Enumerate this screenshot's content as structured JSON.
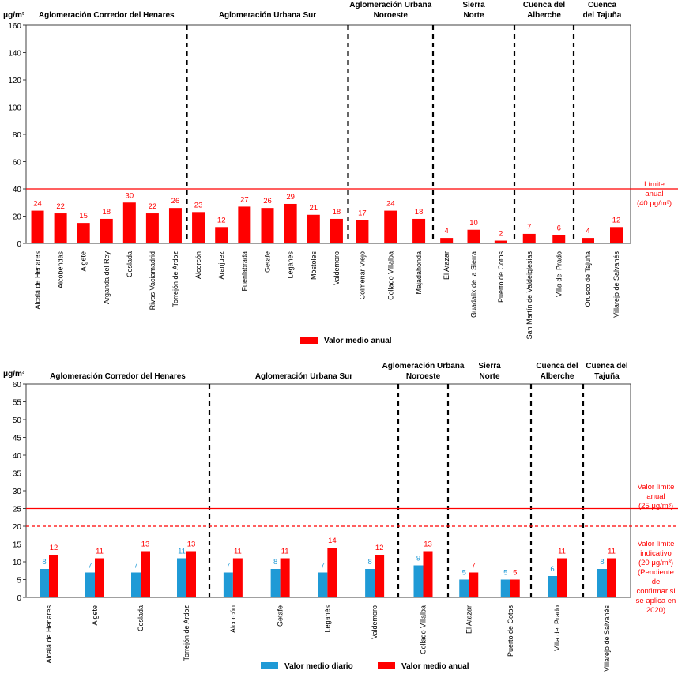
{
  "colors": {
    "red": "#ff0000",
    "blue": "#1f9ad6",
    "axis": "#404040",
    "grid": "#d9d9d9",
    "text": "#000000"
  },
  "chart_data": [
    {
      "type": "bar",
      "unit_label": "μg/m³",
      "ylim": [
        0,
        160
      ],
      "yticks": [
        0,
        20,
        40,
        60,
        80,
        100,
        120,
        140,
        160
      ],
      "groups": [
        {
          "label": [
            "Aglomeración Corredor del Henares"
          ],
          "stations": [
            "Alcalá de Henares",
            "Alcobendas",
            "Algete",
            "Arganda del Rey",
            "Coslada",
            "Rivas Vaciamadrid",
            "Torrejón de Ardoz"
          ]
        },
        {
          "label": [
            "Aglomeración Urbana Sur"
          ],
          "stations": [
            "Alcorcón",
            "Aranjuez",
            "Fuenlabrada",
            "Getafe",
            "Leganés",
            "Móstoles",
            "Valdemoro"
          ]
        },
        {
          "label": [
            "Aglomeración Urbana",
            "Noroeste"
          ],
          "stations": [
            "Colmenar Viejo",
            "Collado Villalba",
            "Majadahonda"
          ]
        },
        {
          "label": [
            "Sierra",
            "Norte"
          ],
          "stations": [
            "El Atazar",
            "Guadalix de la Sierra",
            "Puerto de Cotos"
          ]
        },
        {
          "label": [
            "Cuenca del",
            "Alberche"
          ],
          "stations": [
            "San Martín de Valdeiglesias",
            "Villa del Prado"
          ]
        },
        {
          "label": [
            "Cuenca",
            "del Tajuña"
          ],
          "stations": [
            "Orusco de Tajuña",
            "Villarejo de Salvanés"
          ]
        }
      ],
      "series": [
        {
          "name": "Valor medio anual",
          "color": "#ff0000",
          "values": [
            24,
            22,
            15,
            18,
            30,
            22,
            26,
            23,
            12,
            27,
            26,
            29,
            21,
            18,
            17,
            24,
            18,
            4,
            10,
            2,
            7,
            6,
            4,
            12
          ]
        }
      ],
      "limits": [
        {
          "value": 40,
          "style": "solid",
          "label": [
            "Límite",
            "anual",
            "(40 μg/m³)"
          ]
        }
      ]
    },
    {
      "type": "bar",
      "unit_label": "μg/m³",
      "ylim": [
        0,
        60
      ],
      "yticks": [
        0,
        5,
        10,
        15,
        20,
        25,
        30,
        35,
        40,
        45,
        50,
        55,
        60
      ],
      "groups": [
        {
          "label": [
            "Aglomeración Corredor del Henares"
          ],
          "stations": [
            "Alcalá de Henares",
            "Algete",
            "Coslada",
            "Torrejón de Ardoz"
          ]
        },
        {
          "label": [
            "Aglomeración Urbana Sur"
          ],
          "stations": [
            "Alcorcón",
            "Getafe",
            "Leganés",
            "Valdemoro"
          ]
        },
        {
          "label": [
            "Aglomeración Urbana",
            "Noroeste"
          ],
          "stations": [
            "Collado Villalba"
          ]
        },
        {
          "label": [
            "Sierra",
            "Norte"
          ],
          "stations": [
            "El Atazar",
            "Puerto de Cotos"
          ]
        },
        {
          "label": [
            "Cuenca del",
            "Alberche"
          ],
          "stations": [
            "Villa del Prado"
          ]
        },
        {
          "label": [
            "Cuenca del",
            "Tajuña"
          ],
          "stations": [
            "Villarejo de Salvanés"
          ]
        }
      ],
      "series": [
        {
          "name": "Valor medio diario",
          "color": "#1f9ad6",
          "values": [
            8,
            7,
            7,
            11,
            7,
            8,
            7,
            8,
            9,
            5,
            5,
            6,
            8
          ]
        },
        {
          "name": "Valor medio anual",
          "color": "#ff0000",
          "values": [
            12,
            11,
            13,
            13,
            11,
            11,
            14,
            12,
            13,
            7,
            5,
            11,
            11
          ]
        }
      ],
      "limits": [
        {
          "value": 25,
          "style": "solid",
          "label": [
            "Valor límite",
            "anual",
            "(25 μg/m³)"
          ]
        },
        {
          "value": 20,
          "style": "dashed",
          "label": [
            "Valor límite",
            "indicativo",
            "(20 μg/m³)",
            "(Pendiente",
            "de",
            "confirmar si",
            "se aplica en",
            "2020)"
          ]
        }
      ]
    }
  ]
}
